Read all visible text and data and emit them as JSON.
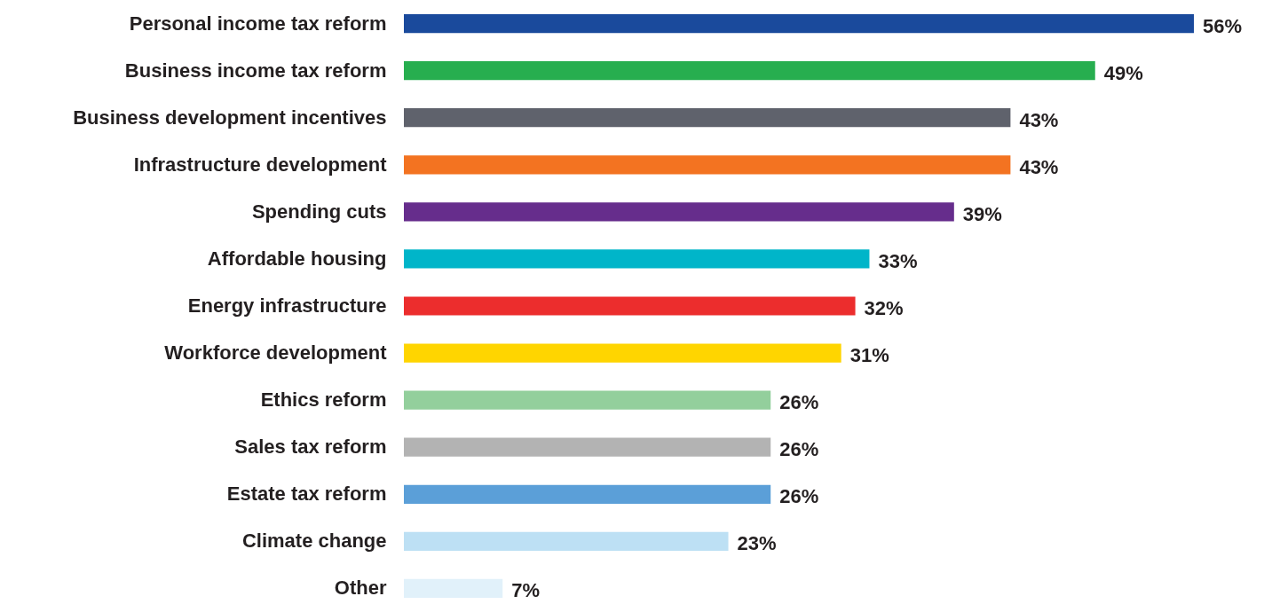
{
  "chart_data": {
    "type": "bar",
    "orientation": "horizontal",
    "categories": [
      "Personal income tax reform",
      "Business income tax reform",
      "Business development incentives",
      "Infrastructure development",
      "Spending cuts",
      "Affordable housing",
      "Energy infrastructure",
      "Workforce development",
      "Ethics reform",
      "Sales tax reform",
      "Estate tax reform",
      "Climate change",
      "Other"
    ],
    "values": [
      56,
      49,
      43,
      43,
      39,
      33,
      32,
      31,
      26,
      26,
      26,
      23,
      7
    ],
    "value_labels": [
      "56%",
      "49%",
      "43%",
      "43%",
      "39%",
      "33%",
      "32%",
      "31%",
      "26%",
      "26%",
      "26%",
      "23%",
      "7%"
    ],
    "colors": [
      "#1a4a9c",
      "#27ae4f",
      "#5f626c",
      "#f37321",
      "#662d8c",
      "#00b5c9",
      "#ec2d2d",
      "#ffd500",
      "#93cf9c",
      "#b3b3b3",
      "#5b9fd8",
      "#bde0f4",
      "#e1f1fa"
    ],
    "grid": false,
    "legend": false
  }
}
